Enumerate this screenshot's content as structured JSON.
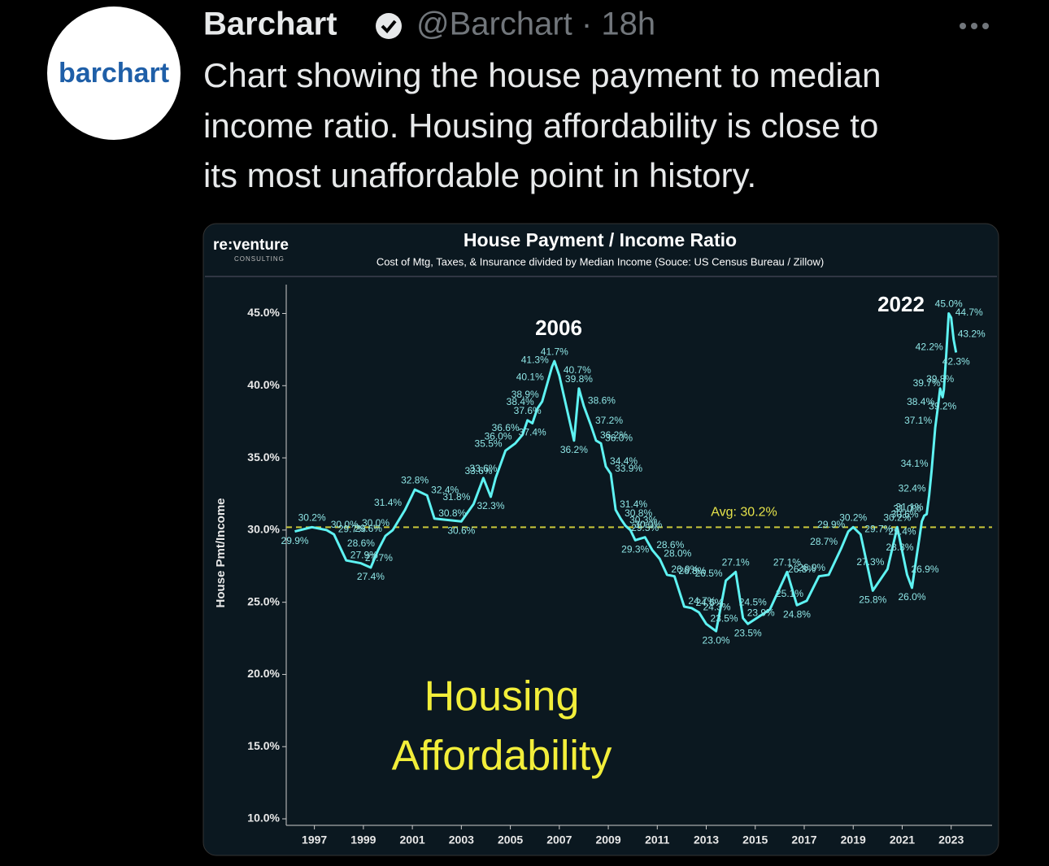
{
  "tweet": {
    "avatar_text": "barchart",
    "name": "Barchart",
    "meta": "@Barchart · 18h",
    "text": [
      "Chart showing the house payment to median",
      "income ratio.  Housing affordability is close to",
      "its most unaffordable point in history."
    ]
  },
  "chart_data": {
    "type": "line",
    "brand": "re:venture",
    "brand_sub": "CONSULTING",
    "title": "House Payment / Income Ratio",
    "subtitle": "Cost of Mtg, Taxes, & Insurance divided by Median Income (Souce: US Census Bureau / Zillow)",
    "y_label": "House Pmt/Income",
    "annotations": [
      "2006",
      "2022",
      "Housing",
      "Affordability"
    ],
    "avg": {
      "value": 30.2,
      "label": "Avg: 30.2%"
    },
    "color": "#5ef2f2",
    "x": [
      1996.2,
      1996.9,
      1997.5,
      1997.8,
      1998.3,
      1998.9,
      1999.3,
      1999.6,
      1999.9,
      2000.2,
      2000.7,
      2001.1,
      2001.6,
      2001.9,
      2003.0,
      2003.5,
      2003.9,
      2004.2,
      2004.4,
      2004.8,
      2005.2,
      2005.5,
      2005.7,
      2005.9,
      2006.1,
      2006.3,
      2006.5,
      2006.7,
      2006.8,
      2007.0,
      2007.6,
      2007.8,
      2008.0,
      2008.3,
      2008.5,
      2008.7,
      2008.9,
      2009.1,
      2009.3,
      2009.5,
      2009.7,
      2009.9,
      2010.1,
      2010.5,
      2010.8,
      2011.1,
      2011.4,
      2011.7,
      2012.1,
      2012.4,
      2012.7,
      2013.0,
      2013.4,
      2013.8,
      2014.2,
      2014.5,
      2014.7,
      2015.6,
      2016.3,
      2016.7,
      2017.1,
      2017.6,
      2018.0,
      2018.5,
      2018.8,
      2019.0,
      2019.3,
      2019.8,
      2020.4,
      2020.8,
      2021.2,
      2021.4,
      2021.6,
      2021.7,
      2021.8,
      2021.9,
      2022.0,
      2022.1,
      2022.2,
      2022.35,
      2022.45,
      2022.55,
      2022.65,
      2022.7,
      2022.8,
      2022.9,
      2023.0,
      2023.1,
      2023.2
    ],
    "values": [
      29.9,
      30.2,
      30.0,
      29.7,
      27.9,
      27.7,
      27.4,
      28.6,
      29.6,
      30.0,
      31.4,
      32.8,
      32.4,
      30.8,
      30.6,
      31.8,
      33.6,
      32.3,
      33.6,
      35.5,
      36.0,
      36.6,
      37.6,
      37.4,
      38.4,
      38.9,
      40.1,
      41.3,
      41.7,
      40.7,
      36.2,
      39.8,
      38.6,
      37.2,
      36.2,
      36.0,
      34.4,
      33.9,
      31.4,
      30.8,
      30.3,
      30.0,
      29.3,
      29.5,
      28.6,
      28.0,
      26.9,
      26.8,
      24.7,
      24.6,
      24.3,
      23.5,
      23.0,
      26.5,
      27.1,
      23.9,
      23.5,
      24.5,
      27.1,
      24.8,
      25.1,
      26.8,
      26.9,
      28.7,
      29.9,
      30.2,
      29.7,
      25.8,
      27.3,
      30.2,
      26.9,
      26.0,
      28.3,
      29.4,
      30.6,
      31.0,
      31.1,
      32.4,
      34.1,
      37.1,
      38.4,
      39.8,
      39.2,
      39.7,
      42.2,
      45.0,
      44.7,
      43.2,
      42.3
    ],
    "value_labels": [
      "29.9%",
      "30.2%",
      "30.0%",
      "29.7%",
      "27.9%",
      "27.7%",
      "27.4%",
      "28.6%",
      "29.6%",
      "30.0%",
      "31.4%",
      "32.8%",
      "32.4%",
      "30.8%",
      "30.6%",
      "31.8%",
      "33.6%",
      "32.3%",
      "33.6%",
      "35.5%",
      "36.0%",
      "36.6%",
      "37.6%",
      "37.4%",
      "38.4%",
      "38.9%",
      "40.1%",
      "41.3%",
      "41.7%",
      "40.7%",
      "36.2%",
      "39.8%",
      "38.6%",
      "37.2%",
      "36.2%",
      "36.0%",
      "34.4%",
      "33.9%",
      "31.4%",
      "30.8%",
      "30.3%",
      "30.0%",
      "29.3%",
      "29.5%",
      "28.6%",
      "28.0%",
      "26.9%",
      "26.8%",
      "24.7%",
      "24.6%",
      "24.3%",
      "23.5%",
      "23.0%",
      "26.5%",
      "27.1%",
      "23.9%",
      "23.5%",
      "24.5%",
      "27.1%",
      "24.8%",
      "25.1%",
      "26.8%",
      "26.9%",
      "28.7%",
      "29.9%",
      "30.2%",
      "29.7%",
      "25.8%",
      "27.3%",
      "30.2%",
      "26.9%",
      "26.0%",
      "28.3%",
      "29.4%",
      "30.6%",
      "31.0%",
      "31.1%",
      "32.4%",
      "34.1%",
      "37.1%",
      "38.4%",
      "39.8%",
      "39.2%",
      "39.7%",
      "42.2%",
      "45.0%",
      "44.7%",
      "43.2%",
      "42.3%"
    ],
    "xlim": [
      1995.85,
      2024.67
    ],
    "xticks": [
      1997,
      1999,
      2001,
      2003,
      2005,
      2007,
      2009,
      2011,
      2013,
      2015,
      2017,
      2019,
      2021,
      2023
    ],
    "ylim": [
      10,
      47
    ],
    "yticks": [
      {
        "value": 10,
        "label": "10.0%"
      },
      {
        "value": 15,
        "label": "15.0%"
      },
      {
        "value": 20,
        "label": "20.0%"
      },
      {
        "value": 25,
        "label": "25.0%"
      },
      {
        "value": 30,
        "label": "30.0%"
      },
      {
        "value": 35,
        "label": "35.0%"
      },
      {
        "value": 40,
        "label": "40.0%"
      },
      {
        "value": 45,
        "label": "45.0%"
      }
    ]
  }
}
